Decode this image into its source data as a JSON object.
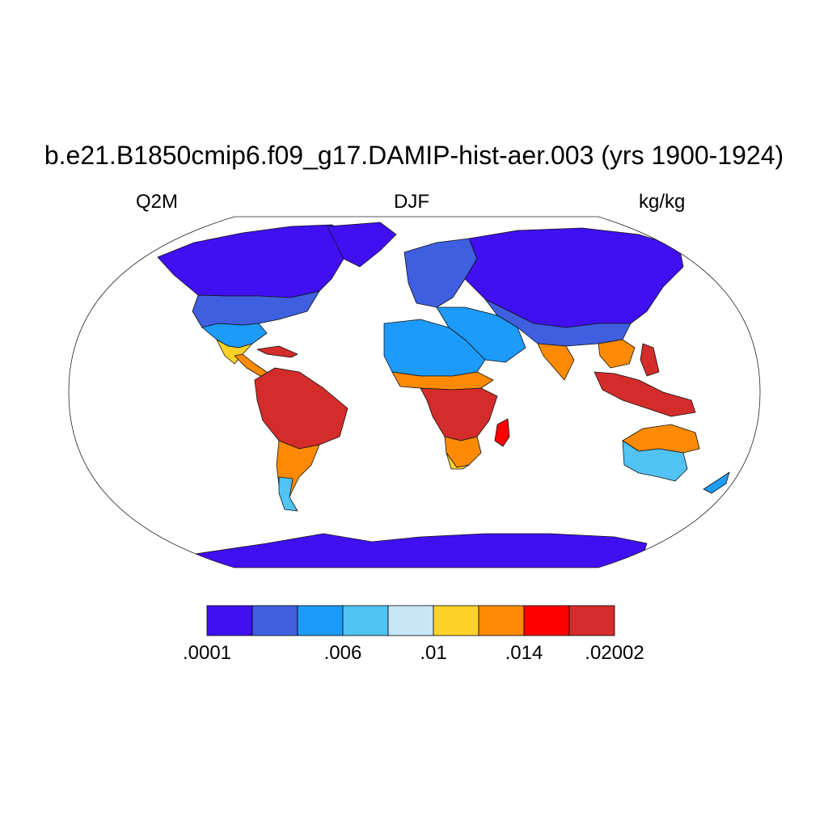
{
  "title": "b.e21.B1850cmip6.f09_g17.DAMIP-hist-aer.003 (yrs 1900-1924)",
  "variable": "Q2M",
  "season": "DJF",
  "units": "kg/kg",
  "colorbar": {
    "colors": [
      "#4110f2",
      "#3e5fe0",
      "#1d9bfb",
      "#52c3f5",
      "#c7e6f8",
      "#fcd22a",
      "#fd8a02",
      "#ff0000",
      "#d42c2b"
    ],
    "labels": [
      {
        "text": ".0001",
        "boundary": 0
      },
      {
        "text": ".006",
        "boundary": 3
      },
      {
        "text": ".01",
        "boundary": 5
      },
      {
        "text": ".014",
        "boundary": 7
      },
      {
        "text": ".02002",
        "boundary": 9
      }
    ]
  }
}
